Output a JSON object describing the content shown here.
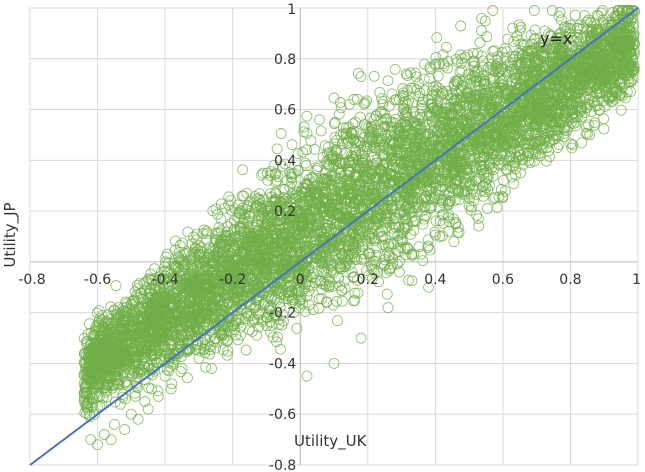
{
  "chart_data": {
    "type": "scatter",
    "title": "",
    "xlabel": "Utility_UK",
    "ylabel": "Utility_JP",
    "xlim": [
      -0.8,
      1
    ],
    "ylim": [
      -0.8,
      1
    ],
    "x_ticks": [
      "-0.8",
      "-0.6",
      "-0.4",
      "-0.2",
      "0",
      "0.2",
      "0.4",
      "0.6",
      "0.8",
      "1"
    ],
    "y_ticks": [
      "-0.8",
      "-0.6",
      "-0.4",
      "-0.2",
      "0",
      "0.2",
      "0.4",
      "0.6",
      "0.8",
      "1"
    ],
    "grid": true,
    "legend": "none",
    "marker": "open-circle",
    "series": [
      {
        "color": "#70ad47",
        "points": [
          [
            -0.62,
            -0.7
          ],
          [
            -0.6,
            -0.72
          ],
          [
            -0.58,
            -0.68
          ],
          [
            -0.56,
            -0.7
          ],
          [
            -0.55,
            -0.64
          ],
          [
            -0.52,
            -0.66
          ],
          [
            -0.5,
            -0.6
          ],
          [
            -0.48,
            -0.62
          ],
          [
            -0.46,
            -0.55
          ],
          [
            -0.45,
            -0.58
          ],
          [
            -0.44,
            -0.5
          ],
          [
            -0.42,
            -0.53
          ],
          [
            -0.4,
            -0.45
          ],
          [
            -0.38,
            -0.48
          ],
          [
            -0.36,
            -0.3
          ],
          [
            -0.35,
            -0.42
          ],
          [
            -0.34,
            -0.16
          ],
          [
            -0.32,
            -0.2
          ],
          [
            -0.3,
            -0.12
          ],
          [
            -0.3,
            -0.38
          ],
          [
            -0.28,
            -0.06
          ],
          [
            -0.26,
            -0.02
          ],
          [
            -0.25,
            -0.3
          ],
          [
            -0.24,
            0.04
          ],
          [
            -0.22,
            0.1
          ],
          [
            -0.2,
            0.06
          ],
          [
            -0.2,
            -0.25
          ],
          [
            -0.18,
            0.14
          ],
          [
            -0.16,
            -0.1
          ],
          [
            -0.15,
            0.18
          ],
          [
            -0.12,
            0.08
          ],
          [
            -0.1,
            0.22
          ],
          [
            -0.1,
            -0.05
          ],
          [
            -0.08,
            0.16
          ],
          [
            -0.05,
            0.24
          ],
          [
            -0.04,
            0.02
          ],
          [
            -0.02,
            -0.2
          ],
          [
            0.0,
            0.2
          ],
          [
            0.02,
            -0.45
          ],
          [
            0.04,
            0.1
          ],
          [
            0.06,
            0.28
          ],
          [
            0.08,
            -0.05
          ],
          [
            0.1,
            -0.4
          ],
          [
            0.12,
            0.18
          ],
          [
            0.14,
            0.3
          ],
          [
            0.16,
            0.02
          ],
          [
            0.18,
            -0.3
          ],
          [
            0.2,
            0.25
          ],
          [
            0.22,
            0.36
          ],
          [
            0.24,
            0.1
          ],
          [
            0.26,
            -0.18
          ],
          [
            0.28,
            0.4
          ],
          [
            0.3,
            0.28
          ],
          [
            0.32,
            0.05
          ],
          [
            0.34,
            0.44
          ],
          [
            0.36,
            0.2
          ],
          [
            0.38,
            -0.1
          ],
          [
            0.4,
            0.48
          ],
          [
            0.42,
            0.32
          ],
          [
            0.44,
            0.12
          ],
          [
            0.46,
            0.55
          ],
          [
            0.48,
            0.4
          ],
          [
            0.5,
            0.22
          ],
          [
            0.52,
            0.6
          ],
          [
            0.54,
            0.48
          ],
          [
            0.56,
            0.3
          ],
          [
            0.58,
            0.64
          ],
          [
            0.6,
            0.52
          ],
          [
            0.62,
            0.4
          ],
          [
            0.64,
            0.7
          ],
          [
            0.66,
            0.58
          ],
          [
            0.68,
            0.48
          ],
          [
            0.7,
            0.74
          ],
          [
            0.72,
            0.62
          ],
          [
            0.74,
            0.55
          ],
          [
            0.76,
            0.78
          ],
          [
            0.78,
            0.68
          ],
          [
            0.8,
            0.62
          ],
          [
            0.82,
            0.82
          ],
          [
            0.84,
            0.72
          ],
          [
            0.86,
            0.68
          ],
          [
            0.88,
            0.86
          ],
          [
            0.9,
            0.78
          ],
          [
            0.92,
            0.9
          ],
          [
            0.94,
            0.84
          ],
          [
            0.96,
            0.93
          ],
          [
            0.98,
            0.96
          ]
        ]
      }
    ],
    "reference_line": {
      "label": "y=x",
      "color": "#4472c4",
      "from": [
        -0.8,
        -0.8
      ],
      "to": [
        1,
        1
      ]
    }
  }
}
